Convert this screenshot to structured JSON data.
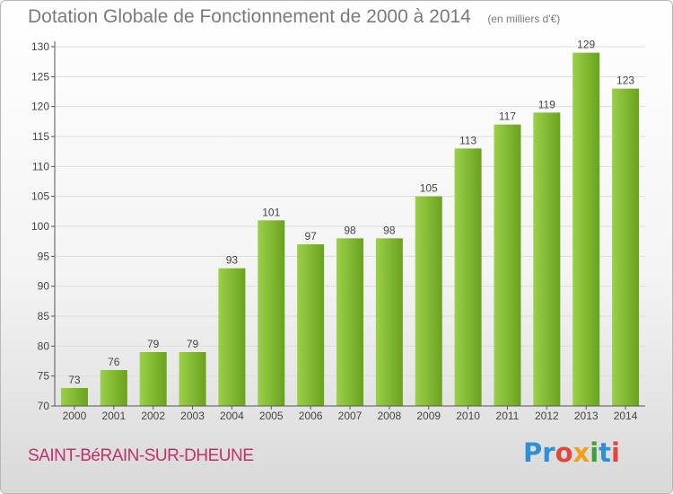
{
  "header": {
    "title": "Dotation Globale de Fonctionnement de 2000 à 2014",
    "unit": "(en milliers d'€)"
  },
  "commune": "SAINT-BéRAIN-SUR-DHEUNE",
  "logo": {
    "text": "Proxiti",
    "parts": [
      "Pr",
      "o",
      "x",
      "i",
      "t",
      "i"
    ]
  },
  "colors": {
    "bar_light": "#9bd048",
    "bar_dark": "#6aa21e",
    "axis": "#555555",
    "grid": "#dddddd",
    "title": "#7a7a7a",
    "commune": "#c0306c"
  },
  "chart_data": {
    "type": "bar",
    "title": "Dotation Globale de Fonctionnement de 2000 à 2014",
    "subtitle": "(en milliers d'€)",
    "xlabel": "",
    "ylabel": "",
    "categories": [
      "2000",
      "2001",
      "2002",
      "2003",
      "2004",
      "2005",
      "2006",
      "2007",
      "2008",
      "2009",
      "2010",
      "2011",
      "2012",
      "2013",
      "2014"
    ],
    "values": [
      73,
      76,
      79,
      79,
      93,
      101,
      97,
      98,
      98,
      105,
      113,
      117,
      119,
      129,
      123
    ],
    "ylim": [
      70,
      130
    ],
    "yticks": [
      70,
      75,
      80,
      85,
      90,
      95,
      100,
      105,
      110,
      115,
      120,
      125,
      130
    ],
    "grid": true,
    "data_labels": true
  }
}
